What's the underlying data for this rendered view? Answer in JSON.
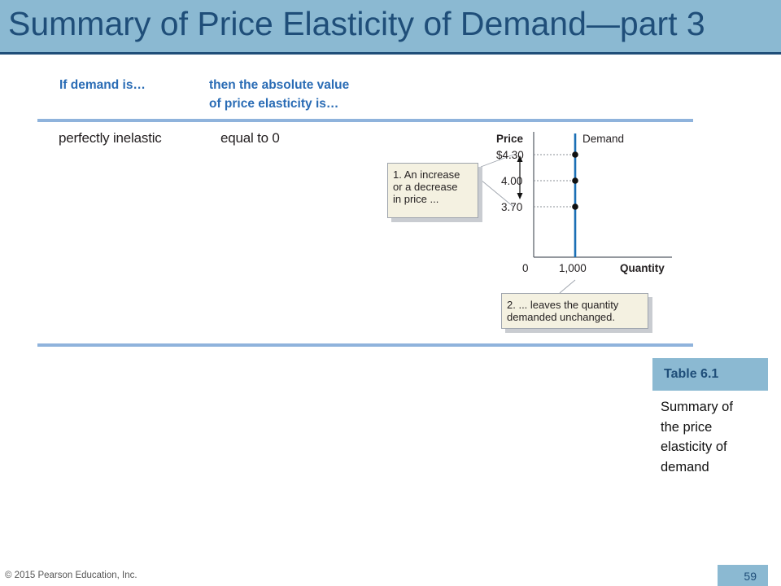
{
  "slide": {
    "title": "Summary of Price Elasticity of Demand—part 3",
    "footer": "© 2015 Pearson Education, Inc.",
    "page_number": "59"
  },
  "table": {
    "header_col1": "If demand is…",
    "header_col2_line1": "then the absolute value",
    "header_col2_line2": "of price elasticity is…",
    "row": {
      "demand": "perfectly inelastic",
      "elasticity": "equal to 0"
    }
  },
  "graph": {
    "y_axis_label": "Price",
    "x_axis_label": "Quantity",
    "curve_label": "Demand",
    "origin_label": "0",
    "x_tick_label": "1,000",
    "price_labels": [
      "$4.30",
      "4.00",
      "3.70"
    ],
    "callout1_lines": [
      "1. An increase",
      "or a decrease",
      "in price ..."
    ],
    "callout2_lines": [
      "2. ... leaves the quantity",
      "demanded unchanged."
    ]
  },
  "chart_data": {
    "type": "line",
    "x": [
      1000,
      1000,
      1000
    ],
    "y": [
      3.7,
      4.0,
      4.3
    ],
    "series": [
      {
        "name": "Demand",
        "x": [
          1000,
          1000,
          1000
        ],
        "y": [
          3.7,
          4.0,
          4.3
        ]
      }
    ],
    "xlabel": "Quantity",
    "ylabel": "Price"
  },
  "table_tag": {
    "label": "Table 6.1",
    "caption_lines": [
      "Summary of",
      "the price",
      "elasticity of",
      "demand"
    ]
  }
}
